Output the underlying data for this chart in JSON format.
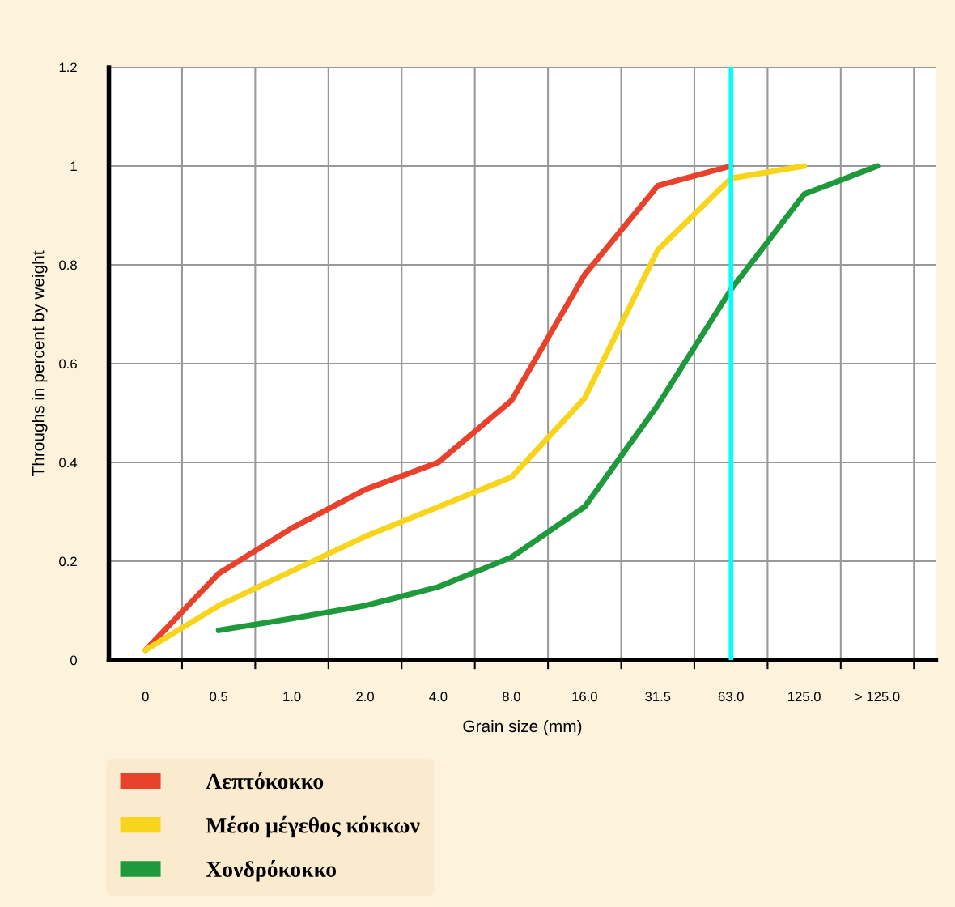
{
  "chart_data": {
    "type": "line",
    "xlabel": "Grain size (mm)",
    "ylabel": "Throughs in percent by weight",
    "categories": [
      "0",
      "0.5",
      "1.0",
      "2.0",
      "4.0",
      "8.0",
      "16.0",
      "31.5",
      "63.0",
      "125.0",
      "> 125.0"
    ],
    "ylim": [
      0,
      1.2
    ],
    "yticks": [
      0,
      0.2,
      0.4,
      0.6,
      0.8,
      1,
      1.2
    ],
    "grid": true,
    "legend": "bottom left",
    "marker": "none",
    "line_style": "solid",
    "ref_lines": [
      {
        "axis": "x",
        "value": "63.0",
        "color": "#00ffff"
      }
    ],
    "series": [
      {
        "name": "Λεπτόκοκκο",
        "color": "#e8412c",
        "values": [
          0.02,
          0.175,
          0.267,
          0.345,
          0.4,
          0.525,
          0.78,
          0.96,
          1.0,
          null,
          null
        ]
      },
      {
        "name": "Μέσο μέγεθος κόκκων",
        "color": "#f7d51d",
        "values": [
          0.02,
          0.11,
          0.18,
          0.25,
          0.31,
          0.37,
          0.53,
          0.83,
          0.975,
          1.0,
          null
        ]
      },
      {
        "name": "Χονδρόκοκκο",
        "color": "#1e9a3c",
        "values": [
          null,
          0.06,
          0.084,
          0.11,
          0.148,
          0.208,
          0.31,
          0.516,
          0.75,
          0.943,
          1.0
        ]
      }
    ]
  }
}
